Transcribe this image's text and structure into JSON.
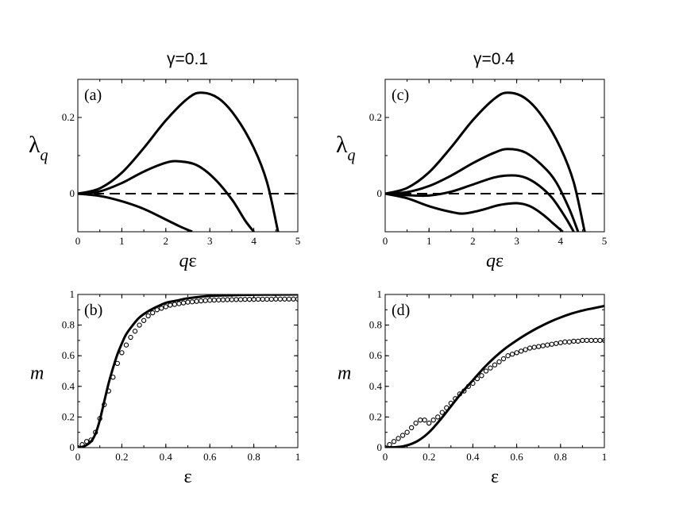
{
  "column_titles": [
    "γ=0.1",
    "γ=0.4"
  ],
  "chart_data": [
    {
      "id": "a",
      "type": "line",
      "panel_label": "(a)",
      "title": "γ=0.1",
      "xlabel": "qε",
      "ylabel": "λq",
      "xlim": [
        0,
        5
      ],
      "ylim": [
        -0.1,
        0.3
      ],
      "xticks": [
        0,
        1,
        2,
        3,
        4,
        5
      ],
      "yticks": [
        0,
        0.2
      ],
      "ytick_labels": [
        "0",
        "0.2"
      ],
      "reference_line": {
        "y": 0,
        "style": "dashed"
      },
      "series": [
        {
          "name": "curve 1",
          "x": [
            0,
            0.5,
            1,
            1.5,
            2,
            2.5,
            2.8,
            3.2,
            3.6,
            4,
            4.3,
            4.55
          ],
          "y": [
            0,
            0.014,
            0.055,
            0.12,
            0.192,
            0.25,
            0.265,
            0.25,
            0.2,
            0.12,
            0.03,
            -0.1
          ]
        },
        {
          "name": "curve 2",
          "x": [
            0,
            0.5,
            1,
            1.5,
            2,
            2.3,
            2.7,
            3.1,
            3.5,
            3.8,
            4
          ],
          "y": [
            0,
            0.006,
            0.028,
            0.058,
            0.081,
            0.085,
            0.075,
            0.04,
            -0.015,
            -0.07,
            -0.1
          ]
        },
        {
          "name": "curve 3",
          "x": [
            0,
            0.5,
            1,
            1.5,
            2,
            2.3,
            2.6
          ],
          "y": [
            0,
            -0.006,
            -0.02,
            -0.04,
            -0.068,
            -0.085,
            -0.1
          ]
        }
      ]
    },
    {
      "id": "c",
      "type": "line",
      "panel_label": "(c)",
      "title": "γ=0.4",
      "xlabel": "qε",
      "ylabel": "λq",
      "xlim": [
        0,
        5
      ],
      "ylim": [
        -0.1,
        0.3
      ],
      "xticks": [
        0,
        1,
        2,
        3,
        4,
        5
      ],
      "yticks": [
        0,
        0.2
      ],
      "ytick_labels": [
        "0",
        "0.2"
      ],
      "reference_line": {
        "y": 0,
        "style": "dashed"
      },
      "series": [
        {
          "name": "curve 1",
          "x": [
            0,
            0.5,
            1,
            1.5,
            2,
            2.5,
            2.8,
            3.2,
            3.6,
            4,
            4.3,
            4.55
          ],
          "y": [
            0,
            0.015,
            0.056,
            0.121,
            0.193,
            0.25,
            0.265,
            0.25,
            0.2,
            0.12,
            0.03,
            -0.1
          ]
        },
        {
          "name": "curve 2",
          "x": [
            0,
            0.5,
            1,
            1.5,
            2,
            2.5,
            2.8,
            3.2,
            3.6,
            3.9,
            4.2,
            4.4
          ],
          "y": [
            0,
            0.004,
            0.02,
            0.047,
            0.08,
            0.108,
            0.117,
            0.108,
            0.072,
            0.03,
            -0.04,
            -0.1
          ]
        },
        {
          "name": "curve 3",
          "x": [
            0,
            0.5,
            1,
            1.5,
            2,
            2.5,
            2.9,
            3.2,
            3.5,
            3.8,
            4.1,
            4.3
          ],
          "y": [
            0,
            -0.004,
            -0.005,
            0.005,
            0.024,
            0.043,
            0.048,
            0.042,
            0.022,
            -0.01,
            -0.06,
            -0.1
          ]
        },
        {
          "name": "curve 4",
          "x": [
            0,
            0.5,
            1,
            1.5,
            1.8,
            2.2,
            2.6,
            3,
            3.3,
            3.6,
            3.85,
            4.05
          ],
          "y": [
            0,
            -0.012,
            -0.033,
            -0.048,
            -0.052,
            -0.043,
            -0.03,
            -0.025,
            -0.033,
            -0.055,
            -0.08,
            -0.1
          ]
        }
      ]
    },
    {
      "id": "b",
      "type": "line",
      "panel_label": "(b)",
      "xlabel": "ε",
      "ylabel": "m",
      "xlim": [
        0,
        1
      ],
      "ylim": [
        0,
        1
      ],
      "xticks": [
        0,
        0.2,
        0.4,
        0.6,
        0.8,
        1
      ],
      "xtick_labels": [
        "0",
        "0.2",
        "0.4",
        "0.6",
        "0.8",
        "1"
      ],
      "yticks": [
        0,
        0.2,
        0.4,
        0.6,
        0.8,
        1
      ],
      "ytick_labels": [
        "0",
        "0.2",
        "0.4",
        "0.6",
        "0.8",
        "1"
      ],
      "series": [
        {
          "name": "theory",
          "style": "line",
          "x": [
            0,
            0.03,
            0.06,
            0.08,
            0.1,
            0.12,
            0.14,
            0.16,
            0.18,
            0.2,
            0.22,
            0.25,
            0.28,
            0.32,
            0.36,
            0.4,
            0.45,
            0.5,
            0.6,
            0.7,
            0.8,
            0.9,
            1.0
          ],
          "y": [
            0,
            0.01,
            0.04,
            0.09,
            0.18,
            0.3,
            0.42,
            0.52,
            0.61,
            0.68,
            0.74,
            0.8,
            0.85,
            0.89,
            0.92,
            0.945,
            0.96,
            0.975,
            0.99,
            0.995,
            0.998,
            0.999,
            1.0
          ]
        },
        {
          "name": "simulation",
          "style": "markers",
          "marker": "open-circle",
          "x": [
            0,
            0.02,
            0.04,
            0.06,
            0.08,
            0.1,
            0.12,
            0.14,
            0.16,
            0.18,
            0.2,
            0.22,
            0.24,
            0.26,
            0.28,
            0.3,
            0.32,
            0.34,
            0.36,
            0.38,
            0.4,
            0.42,
            0.44,
            0.46,
            0.48,
            0.5,
            0.52,
            0.54,
            0.56,
            0.58,
            0.6,
            0.62,
            0.64,
            0.66,
            0.68,
            0.7,
            0.72,
            0.74,
            0.76,
            0.78,
            0.8,
            0.82,
            0.84,
            0.86,
            0.88,
            0.9,
            0.92,
            0.94,
            0.96,
            0.98,
            1.0
          ],
          "y": [
            0.0,
            0.02,
            0.04,
            0.05,
            0.1,
            0.19,
            0.28,
            0.37,
            0.46,
            0.55,
            0.62,
            0.67,
            0.72,
            0.76,
            0.8,
            0.83,
            0.86,
            0.88,
            0.9,
            0.91,
            0.92,
            0.93,
            0.935,
            0.94,
            0.945,
            0.95,
            0.952,
            0.955,
            0.958,
            0.96,
            0.962,
            0.963,
            0.964,
            0.965,
            0.966,
            0.966,
            0.967,
            0.967,
            0.968,
            0.968,
            0.968,
            0.969,
            0.969,
            0.969,
            0.969,
            0.97,
            0.97,
            0.97,
            0.97,
            0.97,
            0.97
          ]
        }
      ]
    },
    {
      "id": "d",
      "type": "line",
      "panel_label": "(d)",
      "xlabel": "ε",
      "ylabel": "m",
      "xlim": [
        0,
        1
      ],
      "ylim": [
        0,
        1
      ],
      "xticks": [
        0,
        0.2,
        0.4,
        0.6,
        0.8,
        1
      ],
      "xtick_labels": [
        "0",
        "0.2",
        "0.4",
        "0.6",
        "0.8",
        "1"
      ],
      "yticks": [
        0,
        0.2,
        0.4,
        0.6,
        0.8,
        1
      ],
      "ytick_labels": [
        "0",
        "0.2",
        "0.4",
        "0.6",
        "0.8",
        "1"
      ],
      "series": [
        {
          "name": "theory",
          "style": "line",
          "x": [
            0,
            0.05,
            0.1,
            0.15,
            0.2,
            0.25,
            0.3,
            0.35,
            0.4,
            0.45,
            0.5,
            0.55,
            0.6,
            0.65,
            0.7,
            0.75,
            0.8,
            0.85,
            0.9,
            0.95,
            1.0
          ],
          "y": [
            0,
            0.003,
            0.015,
            0.045,
            0.1,
            0.18,
            0.27,
            0.36,
            0.44,
            0.52,
            0.59,
            0.65,
            0.7,
            0.745,
            0.785,
            0.82,
            0.85,
            0.875,
            0.895,
            0.91,
            0.925
          ]
        },
        {
          "name": "simulation",
          "style": "markers",
          "marker": "open-circle",
          "x": [
            0,
            0.02,
            0.04,
            0.06,
            0.08,
            0.1,
            0.12,
            0.14,
            0.16,
            0.18,
            0.2,
            0.22,
            0.24,
            0.26,
            0.28,
            0.3,
            0.32,
            0.34,
            0.36,
            0.38,
            0.4,
            0.42,
            0.44,
            0.46,
            0.48,
            0.5,
            0.52,
            0.54,
            0.56,
            0.58,
            0.6,
            0.62,
            0.64,
            0.66,
            0.68,
            0.7,
            0.72,
            0.74,
            0.76,
            0.78,
            0.8,
            0.82,
            0.84,
            0.86,
            0.88,
            0.9,
            0.92,
            0.94,
            0.96,
            0.98,
            1.0
          ],
          "y": [
            0.0,
            0.02,
            0.04,
            0.06,
            0.08,
            0.1,
            0.13,
            0.16,
            0.18,
            0.18,
            0.16,
            0.18,
            0.2,
            0.23,
            0.26,
            0.29,
            0.32,
            0.35,
            0.37,
            0.4,
            0.42,
            0.45,
            0.47,
            0.5,
            0.52,
            0.54,
            0.56,
            0.58,
            0.6,
            0.61,
            0.62,
            0.63,
            0.64,
            0.65,
            0.655,
            0.66,
            0.665,
            0.67,
            0.675,
            0.68,
            0.685,
            0.69,
            0.69,
            0.695,
            0.695,
            0.7,
            0.7,
            0.7,
            0.7,
            0.7,
            0.7
          ]
        }
      ]
    }
  ]
}
